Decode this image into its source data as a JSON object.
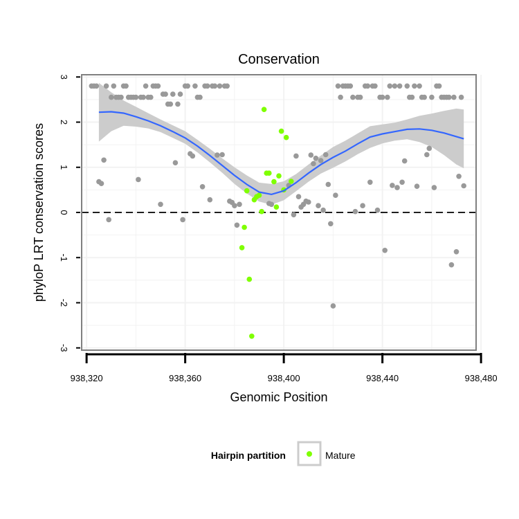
{
  "chart_data": {
    "type": "scatter",
    "title": "Conservation",
    "xlabel": "Genomic Position",
    "ylabel": "phyloP LRT conservation scores",
    "xlim": [
      938320,
      938480
    ],
    "ylim": [
      -3,
      3
    ],
    "x_ticks": [
      938320,
      938360,
      938400,
      938440,
      938480
    ],
    "x_tick_labels": [
      "938,320",
      "938,360",
      "938,400",
      "938,440",
      "938,480"
    ],
    "y_ticks": [
      -3,
      -2,
      -1,
      0,
      1,
      2,
      3
    ],
    "y_tick_labels": [
      "-3",
      "-2",
      "-1",
      "0",
      "1",
      "2",
      "3"
    ],
    "grid": true,
    "reference_line": {
      "y": 0,
      "style": "dashed"
    },
    "legend": {
      "title": "Hairpin partition",
      "position": "bottom",
      "entries": [
        {
          "label": "Mature",
          "color": "#7fff00"
        }
      ]
    },
    "colors": {
      "other": "#999999",
      "mature": "#7fff00",
      "smooth": "#3366ff",
      "band": "#cccccc",
      "grid": "#f2f2f2",
      "border": "#7f7f7f"
    },
    "series": [
      {
        "name": "",
        "color": "#999999",
        "points": [
          [
            938322,
            2.8
          ],
          [
            938323,
            2.8
          ],
          [
            938324,
            2.8
          ],
          [
            938325,
            0.68
          ],
          [
            938326,
            0.64
          ],
          [
            938327,
            1.16
          ],
          [
            938328,
            2.8
          ],
          [
            938329,
            -0.16
          ],
          [
            938330,
            2.55
          ],
          [
            938331,
            2.8
          ],
          [
            938332,
            2.55
          ],
          [
            938333,
            2.55
          ],
          [
            938334,
            2.55
          ],
          [
            938335,
            2.8
          ],
          [
            938336,
            2.8
          ],
          [
            938337,
            2.55
          ],
          [
            938338,
            2.55
          ],
          [
            938339,
            2.55
          ],
          [
            938340,
            2.55
          ],
          [
            938341,
            0.73
          ],
          [
            938342,
            2.55
          ],
          [
            938343,
            2.55
          ],
          [
            938344,
            2.8
          ],
          [
            938345,
            2.55
          ],
          [
            938346,
            2.55
          ],
          [
            938347,
            2.8
          ],
          [
            938348,
            2.8
          ],
          [
            938349,
            2.8
          ],
          [
            938350,
            0.18
          ],
          [
            938351,
            2.62
          ],
          [
            938352,
            2.62
          ],
          [
            938353,
            2.4
          ],
          [
            938354,
            2.4
          ],
          [
            938355,
            2.62
          ],
          [
            938356,
            1.1
          ],
          [
            938357,
            2.4
          ],
          [
            938358,
            2.62
          ],
          [
            938359,
            -0.16
          ],
          [
            938360,
            2.8
          ],
          [
            938361,
            2.8
          ],
          [
            938362,
            1.3
          ],
          [
            938363,
            1.25
          ],
          [
            938364,
            2.8
          ],
          [
            938365,
            2.55
          ],
          [
            938366,
            2.55
          ],
          [
            938367,
            0.57
          ],
          [
            938368,
            2.8
          ],
          [
            938369,
            2.8
          ],
          [
            938370,
            0.28
          ],
          [
            938371,
            2.8
          ],
          [
            938372,
            2.8
          ],
          [
            938373,
            1.27
          ],
          [
            938374,
            2.8
          ],
          [
            938375,
            1.28
          ],
          [
            938376,
            2.8
          ],
          [
            938377,
            2.8
          ],
          [
            938378,
            0.25
          ],
          [
            938379,
            0.22
          ],
          [
            938380,
            0.15
          ],
          [
            938381,
            -0.28
          ],
          [
            938382,
            0.18
          ],
          [
            938394,
            0.2
          ],
          [
            938395,
            0.18
          ],
          [
            938402,
            0.6
          ],
          [
            938404,
            -0.05
          ],
          [
            938405,
            1.25
          ],
          [
            938406,
            0.35
          ],
          [
            938407,
            0.12
          ],
          [
            938408,
            0.18
          ],
          [
            938409,
            0.25
          ],
          [
            938410,
            0.23
          ],
          [
            938411,
            1.27
          ],
          [
            938412,
            1.08
          ],
          [
            938413,
            1.2
          ],
          [
            938414,
            0.15
          ],
          [
            938415,
            1.15
          ],
          [
            938416,
            0.05
          ],
          [
            938417,
            1.28
          ],
          [
            938418,
            0.62
          ],
          [
            938419,
            -0.25
          ],
          [
            938420,
            -2.07
          ],
          [
            938421,
            0.38
          ],
          [
            938422,
            2.8
          ],
          [
            938423,
            2.55
          ],
          [
            938424,
            2.8
          ],
          [
            938425,
            2.8
          ],
          [
            938426,
            2.8
          ],
          [
            938427,
            2.8
          ],
          [
            938428,
            2.55
          ],
          [
            938429,
            0.02
          ],
          [
            938430,
            2.55
          ],
          [
            938431,
            2.55
          ],
          [
            938432,
            0.15
          ],
          [
            938433,
            2.8
          ],
          [
            938434,
            2.8
          ],
          [
            938435,
            0.67
          ],
          [
            938436,
            2.8
          ],
          [
            938437,
            2.8
          ],
          [
            938438,
            0.05
          ],
          [
            938439,
            2.55
          ],
          [
            938440,
            2.55
          ],
          [
            938441,
            -0.84
          ],
          [
            938442,
            2.55
          ],
          [
            938443,
            2.8
          ],
          [
            938444,
            0.6
          ],
          [
            938445,
            2.8
          ],
          [
            938446,
            0.55
          ],
          [
            938447,
            2.8
          ],
          [
            938448,
            0.67
          ],
          [
            938449,
            1.14
          ],
          [
            938450,
            2.8
          ],
          [
            938451,
            2.55
          ],
          [
            938452,
            2.55
          ],
          [
            938453,
            2.8
          ],
          [
            938454,
            0.58
          ],
          [
            938455,
            2.8
          ],
          [
            938456,
            2.55
          ],
          [
            938457,
            2.55
          ],
          [
            938458,
            1.28
          ],
          [
            938459,
            1.42
          ],
          [
            938460,
            2.55
          ],
          [
            938461,
            0.55
          ],
          [
            938462,
            2.8
          ],
          [
            938463,
            2.8
          ],
          [
            938464,
            2.55
          ],
          [
            938465,
            2.55
          ],
          [
            938466,
            2.55
          ],
          [
            938467,
            2.55
          ],
          [
            938468,
            -1.16
          ],
          [
            938469,
            2.55
          ],
          [
            938470,
            -0.87
          ],
          [
            938471,
            0.8
          ],
          [
            938472,
            2.55
          ],
          [
            938473,
            0.59
          ]
        ]
      },
      {
        "name": "Mature",
        "color": "#7fff00",
        "points": [
          [
            938383,
            -0.78
          ],
          [
            938384,
            -0.33
          ],
          [
            938385,
            0.48
          ],
          [
            938386,
            -1.48
          ],
          [
            938387,
            -2.74
          ],
          [
            938388,
            0.28
          ],
          [
            938389,
            0.35
          ],
          [
            938390,
            0.38
          ],
          [
            938391,
            0.02
          ],
          [
            938392,
            2.28
          ],
          [
            938393,
            0.87
          ],
          [
            938394,
            0.87
          ],
          [
            938396,
            0.68
          ],
          [
            938397,
            0.12
          ],
          [
            938398,
            0.81
          ],
          [
            938399,
            1.8
          ],
          [
            938400,
            0.5
          ],
          [
            938401,
            1.66
          ],
          [
            938403,
            0.69
          ]
        ]
      }
    ],
    "smooth": {
      "x": [
        938325,
        938330,
        938335,
        938340,
        938345,
        938350,
        938355,
        938360,
        938365,
        938370,
        938375,
        938380,
        938385,
        938390,
        938395,
        938400,
        938405,
        938410,
        938415,
        938420,
        938425,
        938430,
        938435,
        938440,
        938445,
        938450,
        938455,
        938460,
        938465,
        938470,
        938473
      ],
      "y": [
        2.22,
        2.23,
        2.2,
        2.12,
        2.03,
        1.92,
        1.79,
        1.65,
        1.47,
        1.26,
        1.04,
        0.82,
        0.62,
        0.45,
        0.4,
        0.48,
        0.66,
        0.87,
        1.06,
        1.22,
        1.36,
        1.52,
        1.67,
        1.74,
        1.79,
        1.84,
        1.85,
        1.82,
        1.76,
        1.68,
        1.63
      ],
      "lo": [
        1.57,
        1.8,
        1.92,
        1.9,
        1.86,
        1.78,
        1.65,
        1.52,
        1.33,
        1.11,
        0.88,
        0.63,
        0.42,
        0.24,
        0.17,
        0.27,
        0.47,
        0.68,
        0.86,
        0.99,
        1.13,
        1.29,
        1.43,
        1.53,
        1.59,
        1.62,
        1.56,
        1.45,
        1.27,
        1.06,
        0.98
      ],
      "hi": [
        2.87,
        2.66,
        2.48,
        2.34,
        2.2,
        2.06,
        1.93,
        1.8,
        1.61,
        1.41,
        1.2,
        1.0,
        0.82,
        0.66,
        0.63,
        0.69,
        0.85,
        1.06,
        1.26,
        1.45,
        1.59,
        1.75,
        1.91,
        1.95,
        1.99,
        2.06,
        2.14,
        2.19,
        2.25,
        2.3,
        2.28
      ]
    }
  }
}
